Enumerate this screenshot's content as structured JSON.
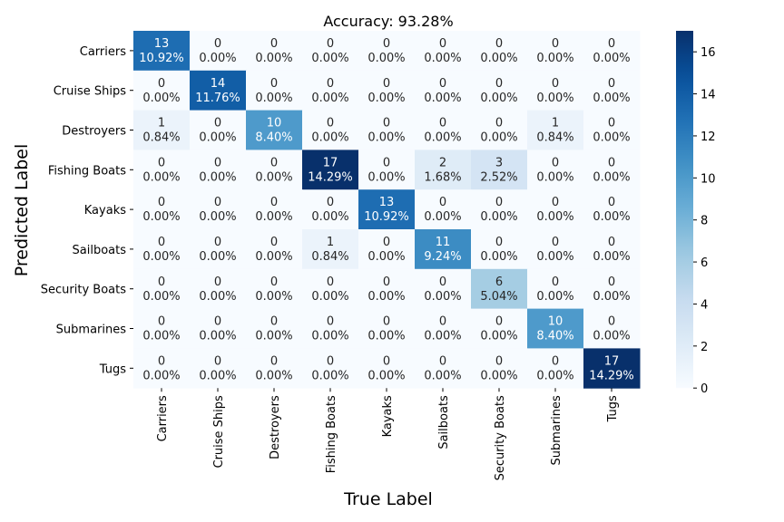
{
  "chart_data": {
    "type": "heatmap",
    "title": "Accuracy: 93.28%",
    "xlabel": "True Label",
    "ylabel": "Predicted Label",
    "x_categories": [
      "Carriers",
      "Cruise Ships",
      "Destroyers",
      "Fishing Boats",
      "Kayaks",
      "Sailboats",
      "Security Boats",
      "Submarines",
      "Tugs"
    ],
    "y_categories": [
      "Carriers",
      "Cruise Ships",
      "Destroyers",
      "Fishing Boats",
      "Kayaks",
      "Sailboats",
      "Security Boats",
      "Submarines",
      "Tugs"
    ],
    "values": [
      [
        13,
        0,
        0,
        0,
        0,
        0,
        0,
        0,
        0
      ],
      [
        0,
        14,
        0,
        0,
        0,
        0,
        0,
        0,
        0
      ],
      [
        1,
        0,
        10,
        0,
        0,
        0,
        0,
        1,
        0
      ],
      [
        0,
        0,
        0,
        17,
        0,
        2,
        3,
        0,
        0
      ],
      [
        0,
        0,
        0,
        0,
        13,
        0,
        0,
        0,
        0
      ],
      [
        0,
        0,
        0,
        1,
        0,
        11,
        0,
        0,
        0
      ],
      [
        0,
        0,
        0,
        0,
        0,
        0,
        6,
        0,
        0
      ],
      [
        0,
        0,
        0,
        0,
        0,
        0,
        0,
        10,
        0
      ],
      [
        0,
        0,
        0,
        0,
        0,
        0,
        0,
        0,
        17
      ]
    ],
    "percentages": [
      [
        "10.92%",
        "0.00%",
        "0.00%",
        "0.00%",
        "0.00%",
        "0.00%",
        "0.00%",
        "0.00%",
        "0.00%"
      ],
      [
        "0.00%",
        "11.76%",
        "0.00%",
        "0.00%",
        "0.00%",
        "0.00%",
        "0.00%",
        "0.00%",
        "0.00%"
      ],
      [
        "0.84%",
        "0.00%",
        "8.40%",
        "0.00%",
        "0.00%",
        "0.00%",
        "0.00%",
        "0.84%",
        "0.00%"
      ],
      [
        "0.00%",
        "0.00%",
        "0.00%",
        "14.29%",
        "0.00%",
        "1.68%",
        "2.52%",
        "0.00%",
        "0.00%"
      ],
      [
        "0.00%",
        "0.00%",
        "0.00%",
        "0.00%",
        "10.92%",
        "0.00%",
        "0.00%",
        "0.00%",
        "0.00%"
      ],
      [
        "0.00%",
        "0.00%",
        "0.00%",
        "0.84%",
        "0.00%",
        "9.24%",
        "0.00%",
        "0.00%",
        "0.00%"
      ],
      [
        "0.00%",
        "0.00%",
        "0.00%",
        "0.00%",
        "0.00%",
        "0.00%",
        "5.04%",
        "0.00%",
        "0.00%"
      ],
      [
        "0.00%",
        "0.00%",
        "0.00%",
        "0.00%",
        "0.00%",
        "0.00%",
        "0.00%",
        "8.40%",
        "0.00%"
      ],
      [
        "0.00%",
        "0.00%",
        "0.00%",
        "0.00%",
        "0.00%",
        "0.00%",
        "0.00%",
        "0.00%",
        "14.29%"
      ]
    ],
    "colorbar": {
      "range": [
        0,
        17
      ],
      "ticks": [
        0,
        2,
        4,
        6,
        8,
        10,
        12,
        14,
        16
      ],
      "colormap": "Blues",
      "color_low": "#f7fbff",
      "color_high": "#08306b"
    },
    "grid": false,
    "legend": "colorbar-right"
  }
}
